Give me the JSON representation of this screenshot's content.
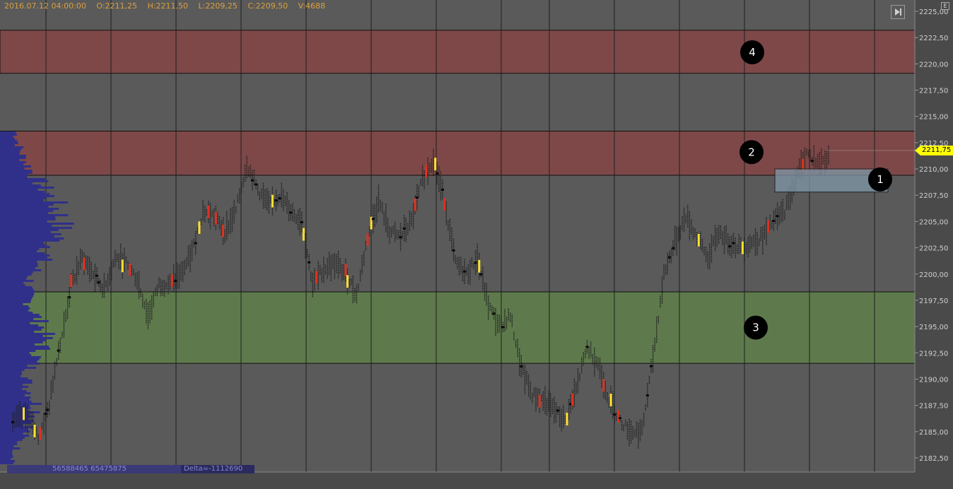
{
  "header": {
    "datetime": "2016.07.12 04:00:00",
    "open": "O:2211,25",
    "high": "H:2211,50",
    "low": "L:2209,25",
    "close": "C:2209,50",
    "volume": "V:4688"
  },
  "toolbar": {
    "corner_icon": "skip-end-icon",
    "mini_label": "E"
  },
  "status": {
    "volume_totals": "56588465 65475875",
    "delta": "Delta=-1112690"
  },
  "colors": {
    "background": "#5a5a5a",
    "resistance_zone": "#7e4848",
    "support_zone": "#5e7a4c",
    "volume_profile": "#30308a",
    "price_tag": "#ffff00",
    "box": "#7e98a8"
  },
  "chart_data": {
    "type": "candlestick",
    "ylim": [
      2181.5,
      2225.5
    ],
    "y_ticks": [
      "2225,00",
      "2222,50",
      "2220,00",
      "2217,50",
      "2215,00",
      "2212,50",
      "2210,00",
      "2207,50",
      "2205,00",
      "2202,50",
      "2200,00",
      "2197,50",
      "2195,00",
      "2192,50",
      "2190,00",
      "2187,50",
      "2185,00",
      "2182,50"
    ],
    "last_price": "2211,75",
    "zones": [
      {
        "label": "4",
        "low": 2219.1,
        "high": 2223.2,
        "kind": "resistance"
      },
      {
        "label": "2",
        "low": 2209.4,
        "high": 2213.6,
        "kind": "resistance"
      },
      {
        "label": "3",
        "low": 2191.5,
        "high": 2198.3,
        "kind": "support"
      }
    ],
    "box": {
      "label": "1",
      "low": 2207.8,
      "high": 2210.0
    },
    "markers": [
      {
        "label": "4",
        "price": 2221.1
      },
      {
        "label": "2",
        "price": 2211.6
      },
      {
        "label": "3",
        "price": 2194.9
      },
      {
        "label": "1",
        "price": 2209.0
      }
    ],
    "path": [
      [
        0,
        2186
      ],
      [
        8,
        2186.5
      ],
      [
        14,
        2184.5
      ],
      [
        20,
        2187.5
      ],
      [
        24,
        2192
      ],
      [
        28,
        2195
      ],
      [
        32,
        2199
      ],
      [
        38,
        2201.5
      ],
      [
        44,
        2200
      ],
      [
        50,
        2198.5
      ],
      [
        56,
        2201.5
      ],
      [
        62,
        2201
      ],
      [
        68,
        2199.5
      ],
      [
        74,
        2196
      ],
      [
        80,
        2199
      ],
      [
        86,
        2199
      ],
      [
        92,
        2200
      ],
      [
        98,
        2202
      ],
      [
        104,
        2206
      ],
      [
        110,
        2205.5
      ],
      [
        116,
        2204
      ],
      [
        122,
        2206
      ],
      [
        128,
        2210.5
      ],
      [
        134,
        2208
      ],
      [
        140,
        2206.5
      ],
      [
        146,
        2207.5
      ],
      [
        152,
        2206
      ],
      [
        158,
        2205
      ],
      [
        164,
        2199
      ],
      [
        170,
        2200.5
      ],
      [
        176,
        2201
      ],
      [
        182,
        2200
      ],
      [
        188,
        2198
      ],
      [
        194,
        2203.5
      ],
      [
        200,
        2207
      ],
      [
        206,
        2204
      ],
      [
        212,
        2203.5
      ],
      [
        218,
        2205
      ],
      [
        224,
        2209
      ],
      [
        230,
        2211
      ],
      [
        236,
        2207
      ],
      [
        242,
        2201
      ],
      [
        248,
        2200
      ],
      [
        254,
        2201.5
      ],
      [
        260,
        2197
      ],
      [
        266,
        2195
      ],
      [
        272,
        2196
      ],
      [
        278,
        2191
      ],
      [
        284,
        2188.5
      ],
      [
        290,
        2188
      ],
      [
        296,
        2187
      ],
      [
        302,
        2186
      ],
      [
        308,
        2189
      ],
      [
        314,
        2193
      ],
      [
        320,
        2191.5
      ],
      [
        326,
        2188
      ],
      [
        332,
        2186
      ],
      [
        338,
        2185
      ],
      [
        344,
        2185
      ],
      [
        350,
        2192
      ],
      [
        356,
        2200
      ],
      [
        362,
        2203
      ],
      [
        368,
        2205.5
      ],
      [
        374,
        2203.5
      ],
      [
        380,
        2201.5
      ],
      [
        386,
        2204
      ],
      [
        392,
        2203
      ],
      [
        398,
        2202.5
      ],
      [
        404,
        2203
      ],
      [
        410,
        2203.5
      ],
      [
        416,
        2205
      ],
      [
        422,
        2206
      ],
      [
        428,
        2209
      ],
      [
        434,
        2211.5
      ],
      [
        440,
        2210.5
      ],
      [
        446,
        2211
      ]
    ]
  }
}
